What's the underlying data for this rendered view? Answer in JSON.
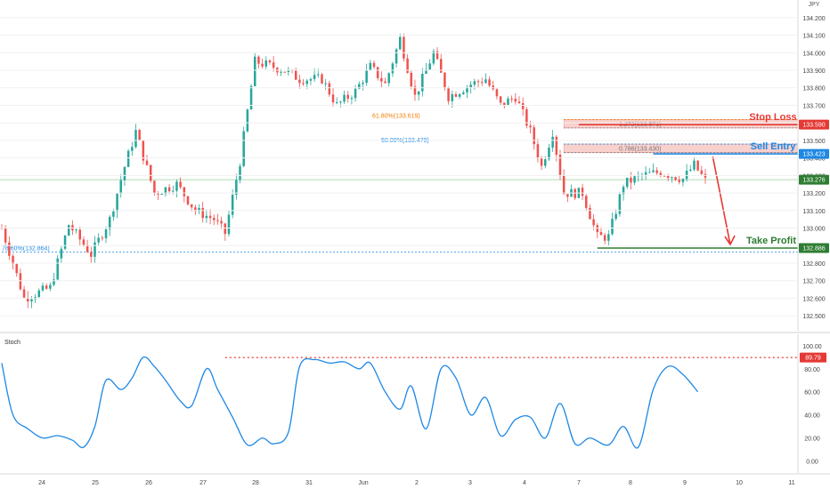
{
  "instrument": {
    "currency": "JPY"
  },
  "chart_data": [
    {
      "type": "candlestick",
      "y_ticks": [
        "132.500",
        "132.600",
        "132.700",
        "132.800",
        "132.900",
        "133.000",
        "133.100",
        "133.200",
        "133.300",
        "133.400",
        "133.500",
        "133.600",
        "133.700",
        "133.800",
        "133.900",
        "134.000",
        "134.100",
        "134.200"
      ],
      "x_ticks": [
        "24",
        "25",
        "26",
        "27",
        "28",
        "31",
        "Jun",
        "2",
        "3",
        "4",
        "7",
        "8",
        "9",
        "10",
        "11"
      ],
      "ylim": [
        132.45,
        134.26
      ],
      "current_price": {
        "value": 133.276,
        "label": "133.276",
        "color": "#2e7d32"
      },
      "stop_loss": {
        "value": 133.59,
        "label": "Stop Loss",
        "price_label": "133.590",
        "color": "#e53935"
      },
      "sell_entry": {
        "value": 133.423,
        "label": "Sell Entry",
        "price_label": "133.423",
        "color": "#1e88e5"
      },
      "take_profit": {
        "value": 132.886,
        "label": "Take Profit",
        "price_label": "132.886",
        "color": "#2e7d32"
      },
      "fibonacci": [
        {
          "label": "61.80%(133.619)",
          "value": 133.619,
          "color": "#f57c00"
        },
        {
          "label": "50.00%(133.479)",
          "value": 133.479,
          "color": "#1e88e5"
        },
        {
          "label": "78.60%(132.864)",
          "value": 132.864,
          "color": "#1e88e5"
        },
        {
          "label": "1.272(133.571)",
          "value": 133.571,
          "color": "#777777"
        },
        {
          "label": "0.786(133.430)",
          "value": 133.43,
          "color": "#777777"
        }
      ],
      "zones": [
        {
          "from": 133.571,
          "to": 133.619,
          "color": "#f8d0cc"
        },
        {
          "from": 133.43,
          "to": 133.479,
          "color": "#f8d0cc"
        }
      ],
      "candle_colors": {
        "up": "#26a69a",
        "down": "#ef5350"
      },
      "path_anchors": [
        [
          0,
          133.0
        ],
        [
          6,
          132.6
        ],
        [
          13,
          132.66
        ],
        [
          18,
          133.02
        ],
        [
          24,
          132.85
        ],
        [
          29,
          133.05
        ],
        [
          33,
          133.35
        ],
        [
          36,
          133.55
        ],
        [
          41,
          133.2
        ],
        [
          47,
          133.25
        ],
        [
          52,
          133.1
        ],
        [
          57,
          133.05
        ],
        [
          60,
          132.97
        ],
        [
          64,
          133.38
        ],
        [
          68,
          133.95
        ],
        [
          76,
          133.9
        ],
        [
          80,
          133.85
        ],
        [
          86,
          133.85
        ],
        [
          90,
          133.7
        ],
        [
          95,
          133.78
        ],
        [
          99,
          133.92
        ],
        [
          103,
          133.82
        ],
        [
          107,
          134.08
        ],
        [
          111,
          133.75
        ],
        [
          116,
          134.0
        ],
        [
          120,
          133.75
        ],
        [
          126,
          133.82
        ],
        [
          130,
          133.85
        ],
        [
          134,
          133.7
        ],
        [
          138,
          133.75
        ],
        [
          142,
          133.55
        ],
        [
          145,
          133.35
        ],
        [
          148,
          133.55
        ],
        [
          151,
          133.2
        ],
        [
          156,
          133.2
        ],
        [
          160,
          132.95
        ],
        [
          163,
          132.95
        ],
        [
          167,
          133.25
        ],
        [
          172,
          133.3
        ],
        [
          177,
          133.32
        ],
        [
          183,
          133.28
        ],
        [
          186,
          133.36
        ],
        [
          189,
          133.27
        ]
      ]
    },
    {
      "type": "line",
      "name": "Stoch",
      "y_ticks": [
        "0.00",
        "20.00",
        "40.00",
        "60.00",
        "80.00",
        "100.00"
      ],
      "ylim": [
        -5,
        103
      ],
      "level": {
        "value": 89.79,
        "label": "89.79",
        "color": "#e53935"
      },
      "line_color": "#1e88e5",
      "x": [
        0,
        3,
        7,
        11,
        15,
        19,
        22,
        25,
        28,
        32,
        35,
        38,
        41,
        44,
        48,
        51,
        55,
        58,
        62,
        66,
        70,
        73,
        77,
        80,
        84,
        88,
        92,
        96,
        99,
        103,
        107,
        110,
        114,
        118,
        122,
        126,
        130,
        134,
        138,
        142,
        146,
        150,
        154,
        158,
        163,
        167,
        171,
        175,
        179,
        183,
        187
      ],
      "values": [
        85,
        40,
        28,
        20,
        22,
        18,
        12,
        30,
        70,
        62,
        72,
        90,
        82,
        70,
        52,
        48,
        80,
        62,
        38,
        14,
        20,
        15,
        25,
        82,
        88,
        85,
        86,
        80,
        85,
        60,
        45,
        65,
        28,
        80,
        72,
        40,
        55,
        22,
        36,
        38,
        20,
        50,
        15,
        20,
        14,
        30,
        12,
        62,
        82,
        75,
        60
      ]
    }
  ]
}
